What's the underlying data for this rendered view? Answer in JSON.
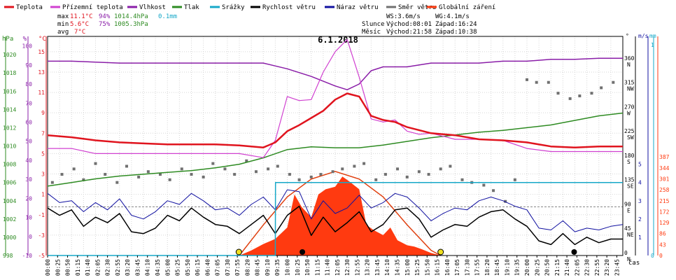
{
  "chart_data": {
    "type": "line",
    "title": "6.1.2018",
    "legend": [
      {
        "key": "temp",
        "label": "Teplota",
        "color": "#e0141e"
      },
      {
        "key": "feel",
        "label": "Přízemní teplota",
        "color": "#d040d0"
      },
      {
        "key": "hum",
        "label": "Vlhkost",
        "color": "#8a1ea8"
      },
      {
        "key": "press",
        "label": "Tlak",
        "color": "#2e8b22"
      },
      {
        "key": "rain",
        "label": "Srážky",
        "color": "#16a8c8"
      },
      {
        "key": "ws",
        "label": "Rychlost větru",
        "color": "#000000"
      },
      {
        "key": "wg",
        "label": "Náraz větru",
        "color": "#1010a0"
      },
      {
        "key": "wd",
        "label": "Směr větru",
        "color": "#707070"
      },
      {
        "key": "sol",
        "label": "Globální záření",
        "color": "#ff3a10"
      }
    ],
    "stats": {
      "max_label": "max",
      "min_label": "min",
      "avg_label": "avg",
      "temp_max": "11.1°C",
      "hum_max": "94%",
      "press_max": "1014.4hPa",
      "rain_max": "0.1mm",
      "temp_min": "5.6°C",
      "hum_min": "75%",
      "press_min": "1005.3hPa",
      "temp_avg": "7°C"
    },
    "info": {
      "ws": "WS:3.6m/s",
      "wg": "WG:4.1m/s",
      "sun_label": "Slunce",
      "sunrise": "Východ:08:01",
      "sunset": "Západ:16:24",
      "moon_label": "Měsíc",
      "moonrise": "Východ:21:58",
      "moonset": "Západ:10:38"
    },
    "left_axes": {
      "hpa": {
        "unit": "hPa",
        "ticks": [
          "998",
          "1000",
          "1002",
          "1004",
          "1006",
          "1008",
          "1010",
          "1012",
          "1014",
          "1016",
          "1018",
          "1020"
        ],
        "range": [
          998,
          1022
        ]
      },
      "pct": {
        "unit": "%",
        "ticks": [
          "-10",
          "0",
          "10",
          "20",
          "30",
          "40",
          "50",
          "60",
          "70",
          "80",
          "90",
          "100"
        ],
        "range": [
          -10,
          105
        ]
      },
      "degc": {
        "unit": "°C",
        "ticks": [
          "-5",
          "-3",
          "-1",
          "1",
          "3",
          "5",
          "7",
          "9",
          "11",
          "13",
          "15"
        ],
        "range": [
          -5,
          16.5
        ]
      }
    },
    "right_axes": {
      "dir": {
        "unit": "°",
        "ticks": [
          "0",
          "45",
          "90",
          "135",
          "180",
          "225",
          "270",
          "315",
          "360"
        ],
        "labels": [
          "N",
          "NE",
          "E",
          "SE",
          "S",
          "SW",
          "W",
          "NW",
          "N"
        ]
      },
      "ms": {
        "unit": "m/s",
        "ticks": [
          "0",
          "1",
          "2",
          "3",
          "4",
          "5"
        ]
      },
      "mm": {
        "unit": "mm",
        "ticks": [
          "0",
          "1"
        ]
      },
      "wm": {
        "ticks": [
          "0",
          "43",
          "86",
          "129",
          "172",
          "215",
          "258",
          "301",
          "344",
          "387"
        ]
      }
    },
    "x_unit": "čas",
    "time_labels": [
      "00:00",
      "00:25",
      "00:50",
      "01:15",
      "01:40",
      "02:05",
      "02:30",
      "02:55",
      "03:20",
      "03:45",
      "04:10",
      "04:35",
      "05:00",
      "05:25",
      "05:50",
      "06:15",
      "06:40",
      "07:05",
      "07:30",
      "07:55",
      "08:20",
      "08:45",
      "09:10",
      "09:35",
      "10:00",
      "10:25",
      "10:50",
      "11:15",
      "11:40",
      "12:05",
      "12:30",
      "12:55",
      "13:20",
      "13:45",
      "14:10",
      "14:35",
      "15:00",
      "15:25",
      "15:50",
      "16:15",
      "16:40",
      "17:05",
      "17:30",
      "17:55",
      "18:20",
      "18:45",
      "19:10",
      "19:35",
      "20:00",
      "20:25",
      "20:50",
      "21:15",
      "21:40",
      "22:05",
      "22:30",
      "22:55",
      "23:20",
      "23:45"
    ],
    "series": {
      "temp": {
        "name": "Teplota",
        "x": [
          0,
          1,
          2,
          3,
          4,
          5,
          6,
          7,
          8,
          9,
          9.5,
          10,
          10.5,
          11,
          11.5,
          12,
          12.5,
          13,
          13.5,
          14,
          14.5,
          15,
          15.5,
          16,
          17,
          18,
          19,
          20,
          21,
          22,
          23,
          24
        ],
        "values": [
          6.8,
          6.6,
          6.3,
          6.1,
          6.0,
          5.9,
          5.9,
          5.9,
          5.8,
          5.6,
          6.1,
          7.2,
          7.8,
          8.5,
          9.2,
          10.3,
          10.9,
          10.6,
          8.7,
          8.3,
          8.1,
          7.6,
          7.3,
          7.0,
          6.8,
          6.4,
          6.3,
          6.1,
          5.7,
          5.6,
          5.7,
          5.7
        ]
      },
      "feel": {
        "name": "Přízemní teplota",
        "x": [
          0,
          1,
          2,
          3,
          4,
          5,
          6,
          7,
          8,
          9,
          9.5,
          10,
          10.5,
          11,
          11.5,
          12,
          12.5,
          13,
          13.5,
          14,
          14.5,
          15,
          15.5,
          16,
          17,
          18,
          19,
          20,
          21,
          22,
          23,
          24
        ],
        "values": [
          5.5,
          5.5,
          5.0,
          5.0,
          5.0,
          5.0,
          5.0,
          5.0,
          5.0,
          4.6,
          6.3,
          10.6,
          10.2,
          10.3,
          13.0,
          15.0,
          16.2,
          12.5,
          8.4,
          8.1,
          8.3,
          7.2,
          6.9,
          7.0,
          6.4,
          6.4,
          6.3,
          5.5,
          5.2,
          5.2,
          5.2,
          5.2
        ]
      },
      "hum": {
        "name": "Vlhkost",
        "x": [
          0,
          1,
          2,
          3,
          4,
          5,
          6,
          7,
          8,
          9,
          10,
          11,
          12,
          12.5,
          13,
          13.5,
          14,
          14.5,
          15,
          16,
          17,
          18,
          19,
          20,
          21,
          22,
          23,
          24
        ],
        "values": [
          92,
          92,
          91.5,
          91,
          91,
          91,
          91,
          91,
          91,
          91,
          88,
          84,
          79,
          77,
          80,
          87,
          89,
          89,
          89,
          91,
          91,
          91,
          92,
          92,
          93,
          93,
          93.5,
          93.5
        ]
      },
      "press": {
        "name": "Tlak",
        "x": [
          0,
          1,
          2,
          3,
          4,
          5,
          6,
          7,
          8,
          9,
          10,
          11,
          12,
          13,
          14,
          15,
          16,
          17,
          18,
          19,
          20,
          21,
          22,
          23,
          24
        ],
        "values": [
          1005.6,
          1006.0,
          1006.4,
          1006.7,
          1006.9,
          1007.1,
          1007.3,
          1007.6,
          1008.0,
          1008.7,
          1009.6,
          1009.9,
          1009.8,
          1009.8,
          1010.1,
          1010.5,
          1010.9,
          1011.2,
          1011.5,
          1011.7,
          1012.0,
          1012.3,
          1012.8,
          1013.3,
          1013.6
        ]
      },
      "rain": {
        "name": "Srážky",
        "x": [
          0,
          9.5,
          9.51,
          24
        ],
        "values": [
          0,
          0,
          0.1,
          0.1
        ]
      },
      "ws": {
        "name": "Rychlost větru",
        "x": [
          0,
          0.5,
          1,
          1.5,
          2,
          2.5,
          3,
          3.5,
          4,
          4.5,
          5,
          5.5,
          6,
          6.5,
          7,
          7.5,
          8,
          8.5,
          9,
          9.5,
          10,
          10.5,
          11,
          11.5,
          12,
          12.5,
          13,
          13.5,
          14,
          14.5,
          15,
          15.5,
          16,
          16.5,
          17,
          17.5,
          18,
          18.5,
          19,
          19.5,
          20,
          20.5,
          21,
          21.5,
          22,
          22.5,
          23,
          23.5,
          24
        ],
        "values": [
          2.6,
          2.2,
          2.5,
          1.6,
          2.1,
          1.8,
          2.3,
          1.3,
          1.2,
          1.5,
          2.2,
          1.9,
          2.6,
          2.1,
          1.7,
          1.6,
          1.2,
          1.7,
          2.2,
          1.2,
          2.2,
          2.7,
          1.1,
          2.1,
          1.3,
          1.8,
          2.4,
          1.3,
          1.7,
          2.5,
          2.6,
          2.0,
          1.0,
          1.4,
          1.7,
          1.6,
          2.1,
          2.4,
          2.5,
          2.0,
          1.6,
          0.8,
          0.6,
          1.2,
          0.6,
          1.0,
          0.7,
          0.9,
          0.9
        ]
      },
      "wg": {
        "name": "Náraz větru",
        "x": [
          0,
          0.5,
          1,
          1.5,
          2,
          2.5,
          3,
          3.5,
          4,
          4.5,
          5,
          5.5,
          6,
          6.5,
          7,
          7.5,
          8,
          8.5,
          9,
          9.5,
          10,
          10.5,
          11,
          11.5,
          12,
          12.5,
          13,
          13.5,
          14,
          14.5,
          15,
          15.5,
          16,
          16.5,
          17,
          17.5,
          18,
          18.5,
          19,
          19.5,
          20,
          20.5,
          21,
          21.5,
          22,
          22.5,
          23,
          23.5,
          24
        ],
        "values": [
          3.4,
          2.9,
          3.0,
          2.4,
          2.9,
          2.5,
          3.1,
          2.2,
          2.0,
          2.4,
          3.0,
          2.8,
          3.4,
          3.0,
          2.5,
          2.6,
          2.2,
          2.8,
          3.2,
          2.5,
          3.6,
          3.5,
          2.0,
          3.0,
          2.3,
          2.6,
          3.3,
          2.6,
          2.9,
          3.4,
          3.2,
          2.6,
          1.9,
          2.3,
          2.6,
          2.5,
          3.0,
          3.2,
          3.0,
          2.7,
          2.5,
          1.5,
          1.4,
          1.9,
          1.3,
          1.5,
          1.4,
          1.6,
          1.7
        ]
      },
      "wd": {
        "name": "Směr větru",
        "x": [
          0.2,
          0.6,
          1.1,
          1.5,
          2.0,
          2.4,
          2.9,
          3.3,
          3.8,
          4.2,
          4.7,
          5.1,
          5.6,
          6.0,
          6.5,
          6.9,
          7.4,
          7.8,
          8.3,
          8.7,
          9.2,
          9.6,
          10.1,
          10.5,
          11.0,
          11.4,
          11.9,
          12.3,
          12.8,
          13.2,
          13.7,
          14.1,
          14.6,
          15.0,
          15.5,
          15.9,
          16.4,
          16.8,
          17.3,
          17.7,
          18.2,
          18.6,
          19.1,
          19.5,
          20.0,
          20.4,
          20.9,
          21.3,
          21.8,
          22.2,
          22.7,
          23.1,
          23.6
        ],
        "values": [
          135,
          150,
          160,
          140,
          170,
          150,
          135,
          165,
          145,
          155,
          150,
          140,
          160,
          150,
          145,
          170,
          160,
          150,
          175,
          155,
          160,
          165,
          150,
          140,
          145,
          150,
          155,
          160,
          165,
          170,
          140,
          150,
          160,
          145,
          155,
          150,
          160,
          165,
          140,
          135,
          130,
          120,
          100,
          140,
          325,
          320,
          320,
          300,
          290,
          295,
          300,
          310,
          320
        ]
      },
      "sol": {
        "name": "Globální záření",
        "x": [
          8.0,
          8.5,
          9,
          9.5,
          10,
          10.3,
          10.6,
          11,
          11.3,
          11.6,
          12,
          12.3,
          12.6,
          13,
          13.3,
          13.6,
          14,
          14.3,
          14.6,
          15,
          15.3,
          15.6,
          16,
          16.4
        ],
        "values": [
          0,
          20,
          45,
          65,
          110,
          240,
          190,
          150,
          240,
          260,
          270,
          310,
          290,
          260,
          120,
          100,
          80,
          110,
          60,
          40,
          35,
          25,
          10,
          0
        ]
      },
      "sol_clear": {
        "name": "",
        "x": [
          8.0,
          9,
          10,
          11,
          12,
          13,
          14,
          15,
          16,
          16.4
        ],
        "values": [
          0,
          120,
          230,
          300,
          330,
          300,
          230,
          120,
          20,
          0
        ]
      }
    },
    "sun_markers": [
      7.98,
      16.4
    ],
    "moon_markers": [
      10.63,
      21.97
    ]
  }
}
